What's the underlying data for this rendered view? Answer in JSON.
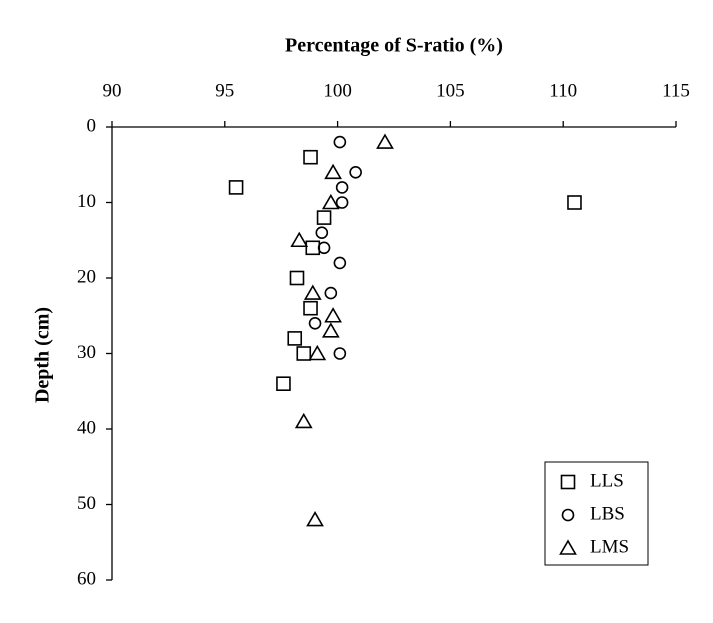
{
  "chart_data": {
    "type": "scatter",
    "title": "Percentage of S-ratio (%)",
    "y_label": "Depth (cm)",
    "x_axis_position": "top",
    "y_inverted": true,
    "legend": "lower right",
    "xlim": [
      90,
      115
    ],
    "xticks": [
      90,
      95,
      100,
      105,
      110,
      115
    ],
    "ylim": [
      0,
      60
    ],
    "yticks": [
      0,
      10,
      20,
      30,
      40,
      50,
      60
    ],
    "series": [
      {
        "name": "LLS",
        "marker": "square",
        "color": "#000000",
        "x": [
          98.8,
          95.5,
          110.5,
          99.4,
          98.9,
          98.2,
          98.8,
          98.1,
          98.5,
          97.6
        ],
        "values": [
          4,
          8,
          10,
          12,
          16,
          20,
          24,
          28,
          30,
          34
        ]
      },
      {
        "name": "LBS",
        "marker": "circle",
        "color": "#000000",
        "x": [
          100.1,
          100.8,
          100.2,
          100.2,
          99.3,
          99.4,
          100.1,
          99.7,
          99.0,
          100.1
        ],
        "values": [
          2,
          6,
          8,
          10,
          14,
          16,
          18,
          22,
          26,
          30
        ]
      },
      {
        "name": "LMS",
        "marker": "triangle",
        "color": "#000000",
        "x": [
          102.1,
          99.8,
          99.7,
          98.3,
          98.9,
          99.8,
          99.7,
          99.1,
          98.5,
          99.0
        ],
        "values": [
          2,
          6,
          10,
          15,
          22,
          25,
          27,
          30,
          39,
          52
        ]
      }
    ]
  }
}
